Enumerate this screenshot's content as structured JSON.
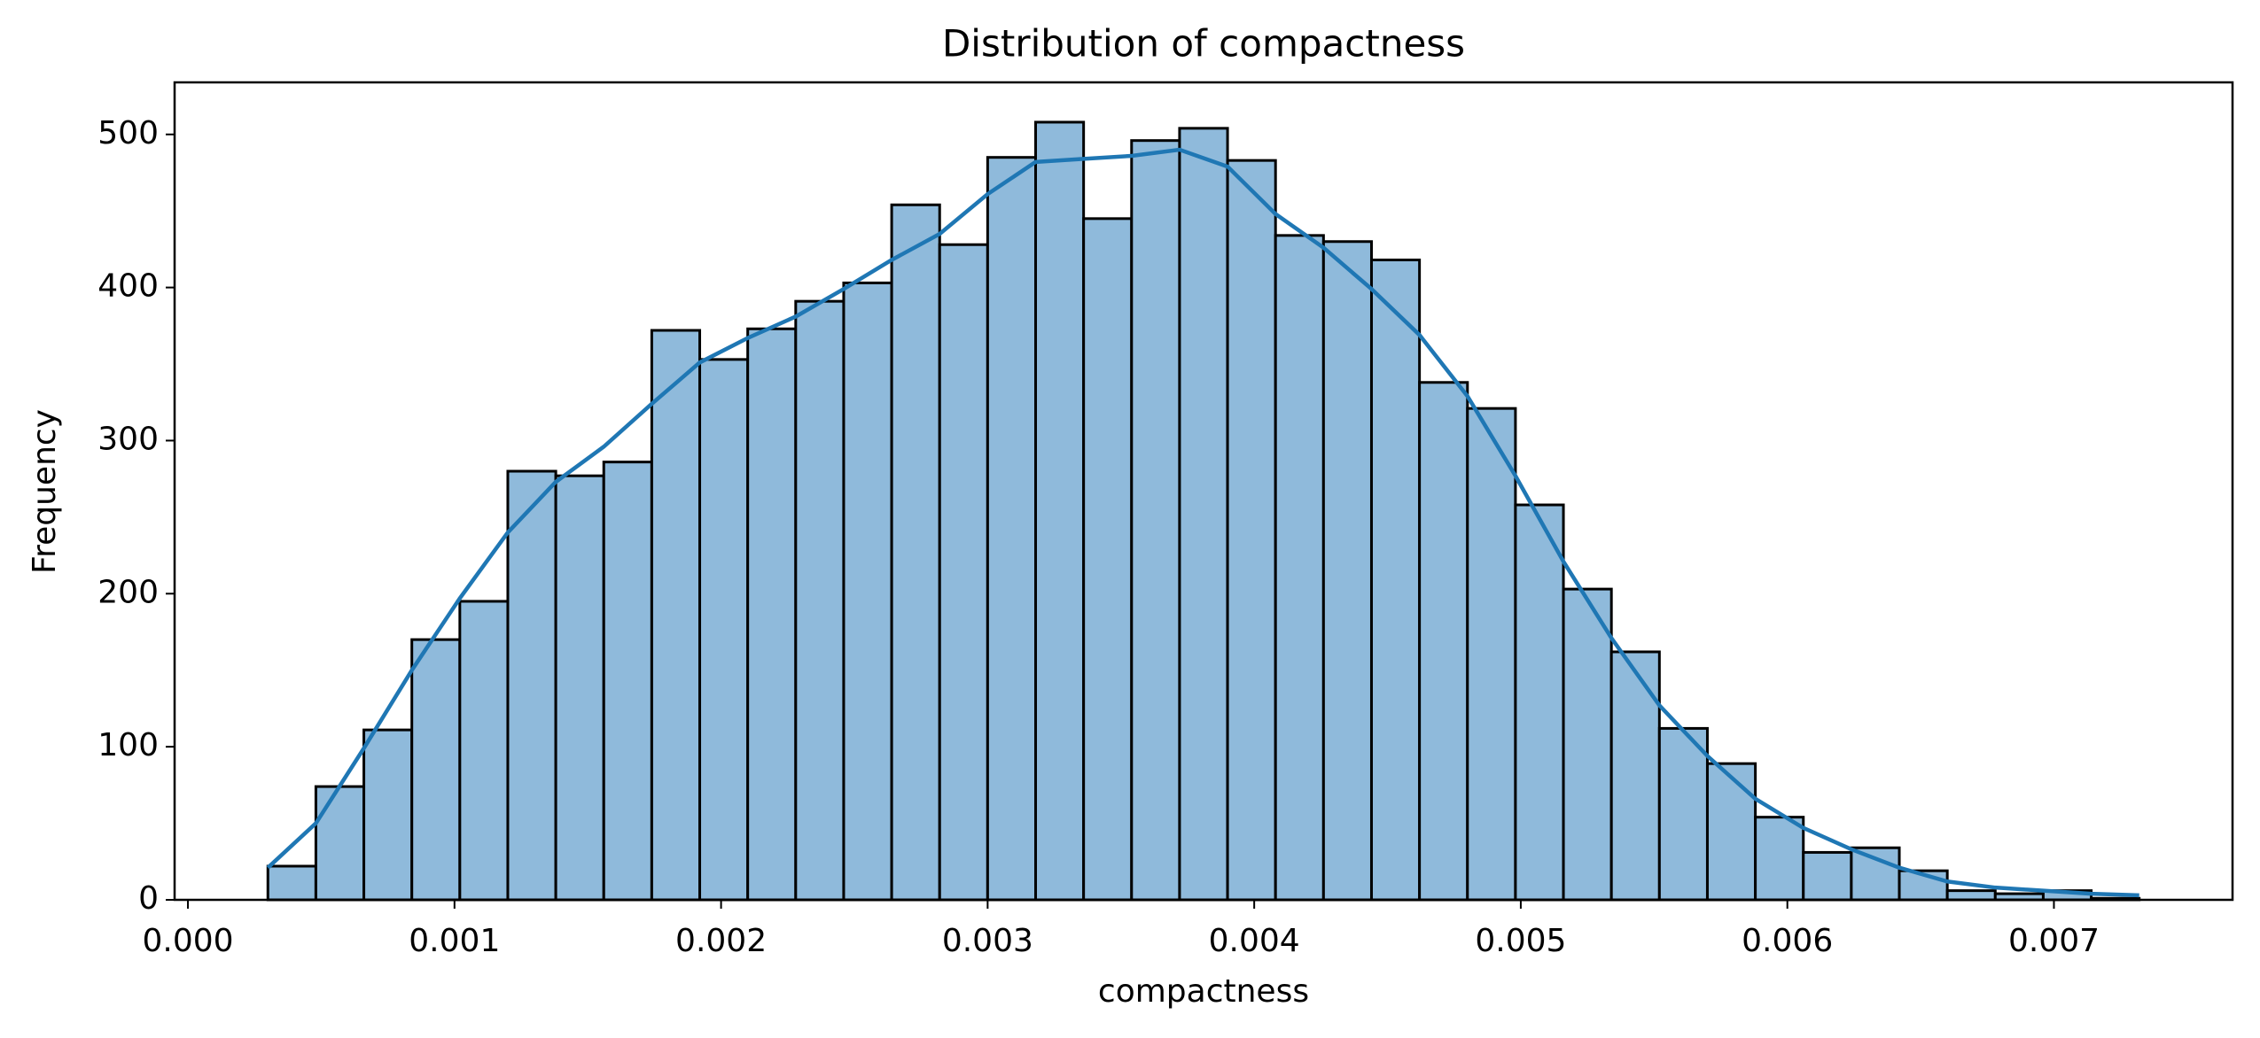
{
  "chart_data": {
    "type": "histogram",
    "title": "Distribution of compactness",
    "x_label": "compactness",
    "y_label": "Frequency",
    "bins": [
      0.0003,
      0.00048,
      0.00066,
      0.00084,
      0.00102,
      0.0012,
      0.00138,
      0.00156,
      0.00174,
      0.00192,
      0.0021,
      0.00228,
      0.00246,
      0.00264,
      0.00282,
      0.003,
      0.00318,
      0.00336,
      0.00354,
      0.00372,
      0.0039,
      0.00408,
      0.00426,
      0.00444,
      0.00462,
      0.0048,
      0.00498,
      0.00516,
      0.00534,
      0.00552,
      0.0057,
      0.00588,
      0.00606,
      0.00624,
      0.00642,
      0.0066,
      0.00678,
      0.00696,
      0.00714,
      0.00732
    ],
    "counts": [
      22,
      74,
      111,
      170,
      195,
      280,
      277,
      286,
      372,
      353,
      373,
      391,
      403,
      454,
      428,
      485,
      508,
      445,
      496,
      504,
      483,
      434,
      430,
      418,
      338,
      321,
      258,
      203,
      162,
      112,
      89,
      54,
      31,
      34,
      19,
      6,
      4,
      6,
      1
    ],
    "color": "#8fbadb",
    "edgecolor": "#000000",
    "kde": {
      "color": "#1f77b4",
      "x": [
        0.0003,
        0.00048,
        0.00066,
        0.00084,
        0.00102,
        0.0012,
        0.00138,
        0.00156,
        0.00174,
        0.00192,
        0.0021,
        0.00228,
        0.00246,
        0.00264,
        0.00282,
        0.003,
        0.00318,
        0.00336,
        0.00354,
        0.00372,
        0.0039,
        0.00408,
        0.00426,
        0.00444,
        0.00462,
        0.0048,
        0.00498,
        0.00516,
        0.00534,
        0.00552,
        0.0057,
        0.00588,
        0.00606,
        0.00624,
        0.00642,
        0.0066,
        0.00678,
        0.00696,
        0.00714,
        0.00732
      ],
      "y": [
        21,
        50,
        99,
        150,
        197,
        240,
        273,
        296,
        324,
        351,
        367,
        381,
        399,
        418,
        435,
        461,
        482,
        484,
        486,
        490,
        479,
        448,
        426,
        399,
        369,
        329,
        277,
        221,
        171,
        127,
        94,
        66,
        47,
        33,
        21,
        12,
        8,
        6,
        4,
        3
      ]
    },
    "xlim": [
      -5e-05,
      0.00767
    ],
    "ylim": [
      0,
      534
    ],
    "xticks": [
      {
        "value": 0,
        "label": "0.000"
      },
      {
        "value": 0.001,
        "label": "0.001"
      },
      {
        "value": 0.002,
        "label": "0.002"
      },
      {
        "value": 0.003,
        "label": "0.003"
      },
      {
        "value": 0.004,
        "label": "0.004"
      },
      {
        "value": 0.005,
        "label": "0.005"
      },
      {
        "value": 0.006,
        "label": "0.006"
      },
      {
        "value": 0.007,
        "label": "0.007"
      }
    ],
    "yticks": [
      0,
      100,
      200,
      300,
      400,
      500
    ]
  }
}
